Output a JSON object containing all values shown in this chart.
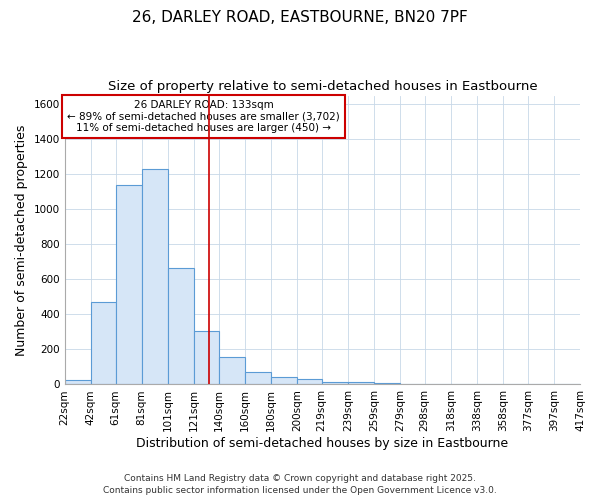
{
  "title_line1": "26, DARLEY ROAD, EASTBOURNE, BN20 7PF",
  "title_line2": "Size of property relative to semi-detached houses in Eastbourne",
  "xlabel": "Distribution of semi-detached houses by size in Eastbourne",
  "ylabel": "Number of semi-detached properties",
  "footer": "Contains HM Land Registry data © Crown copyright and database right 2025.\nContains public sector information licensed under the Open Government Licence v3.0.",
  "bin_labels": [
    "22sqm",
    "42sqm",
    "61sqm",
    "81sqm",
    "101sqm",
    "121sqm",
    "140sqm",
    "160sqm",
    "180sqm",
    "200sqm",
    "219sqm",
    "239sqm",
    "259sqm",
    "279sqm",
    "298sqm",
    "318sqm",
    "338sqm",
    "358sqm",
    "377sqm",
    "397sqm",
    "417sqm"
  ],
  "bin_edges": [
    22,
    42,
    61,
    81,
    101,
    121,
    140,
    160,
    180,
    200,
    219,
    239,
    259,
    279,
    298,
    318,
    338,
    358,
    377,
    397,
    417
  ],
  "bar_heights": [
    25,
    470,
    1140,
    1230,
    665,
    305,
    155,
    70,
    45,
    30,
    15,
    15,
    10,
    5,
    5,
    3,
    3,
    3,
    3,
    3
  ],
  "bar_color": "#d6e6f7",
  "bar_edge_color": "#5b9bd5",
  "red_line_x": 133,
  "annotation_title": "26 DARLEY ROAD: 133sqm",
  "annotation_line2": "← 89% of semi-detached houses are smaller (3,702)",
  "annotation_line3": "11% of semi-detached houses are larger (450) →",
  "annotation_box_color": "#ffffff",
  "annotation_box_edge": "#cc0000",
  "ylim": [
    0,
    1650
  ],
  "yticks": [
    0,
    200,
    400,
    600,
    800,
    1000,
    1200,
    1400,
    1600
  ],
  "background_color": "#ffffff",
  "grid_color": "#c8d8e8",
  "title_fontsize": 11,
  "subtitle_fontsize": 9.5,
  "axis_label_fontsize": 9,
  "tick_fontsize": 7.5,
  "annotation_fontsize": 7.5,
  "footer_fontsize": 6.5
}
